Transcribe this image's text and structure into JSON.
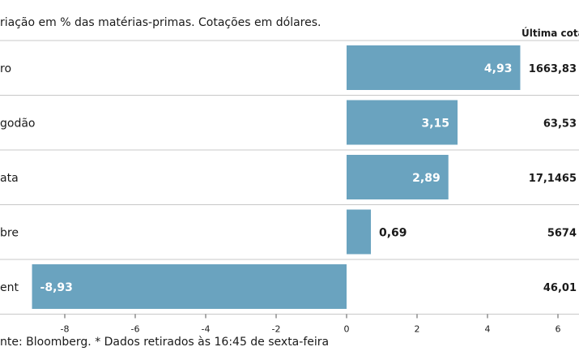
{
  "chart_data": {
    "type": "bar",
    "orientation": "horizontal",
    "title": "riação em % das matérias-primas. Cotações em dólares.",
    "table_header": "Última cotaç",
    "categories": [
      "ro",
      "godão",
      "ata",
      "bre",
      "ent"
    ],
    "values": [
      4.93,
      3.15,
      2.89,
      0.69,
      -8.93
    ],
    "value_labels": [
      "4,93",
      "3,15",
      "2,89",
      "0,69",
      "-8,93"
    ],
    "last_quote": [
      "1663,83",
      "63,53",
      "17,1465",
      "5674",
      "46,01"
    ],
    "xlim": [
      -10,
      6
    ],
    "xticks": [
      -8,
      -6,
      -4,
      -2,
      0,
      2,
      4,
      6
    ],
    "xtick_labels": [
      "-8",
      "-6",
      "-4",
      "-2",
      "0",
      "2",
      "4",
      "6"
    ],
    "source": "nte: Bloomberg.  * Dados retirados às 16:45 de sexta-feira",
    "grid": true,
    "colors": {
      "bar": "#6aa3bf",
      "grid": "#c8c8c8",
      "text": "#1a1a1a",
      "label_on_bar": "#ffffff"
    }
  }
}
